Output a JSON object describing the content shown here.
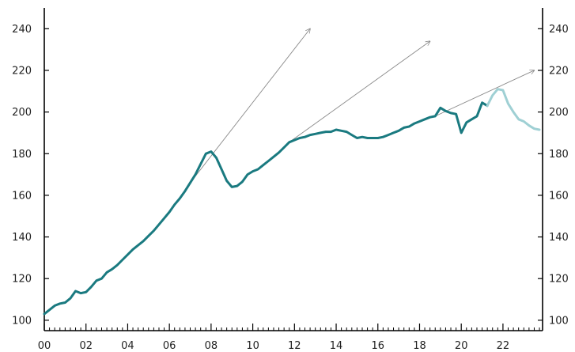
{
  "chart_data": {
    "type": "line",
    "title": "",
    "xlabel": "",
    "ylabel": "",
    "xlim": [
      2000,
      2023.9
    ],
    "ylim": [
      95,
      250
    ],
    "y_ticks": [
      100,
      120,
      140,
      160,
      180,
      200,
      220,
      240
    ],
    "x_ticks": [
      {
        "value": 2000,
        "label": "00"
      },
      {
        "value": 2002,
        "label": "02"
      },
      {
        "value": 2004,
        "label": "04"
      },
      {
        "value": 2006,
        "label": "06"
      },
      {
        "value": 2008,
        "label": "08"
      },
      {
        "value": 2010,
        "label": "10"
      },
      {
        "value": 2012,
        "label": "12"
      },
      {
        "value": 2014,
        "label": "14"
      },
      {
        "value": 2016,
        "label": "16"
      },
      {
        "value": 2018,
        "label": "18"
      },
      {
        "value": 2020,
        "label": "20"
      },
      {
        "value": 2022,
        "label": "22"
      }
    ],
    "dual_y_axis": true,
    "grid": false,
    "series": [
      {
        "color": "#1a7a80",
        "style": "solid",
        "points": [
          [
            2000.0,
            103
          ],
          [
            2000.25,
            105
          ],
          [
            2000.5,
            107
          ],
          [
            2000.75,
            108
          ],
          [
            2001.0,
            108.5
          ],
          [
            2001.25,
            110.5
          ],
          [
            2001.5,
            114
          ],
          [
            2001.75,
            113
          ],
          [
            2002.0,
            113.5
          ],
          [
            2002.25,
            116
          ],
          [
            2002.5,
            119
          ],
          [
            2002.75,
            120
          ],
          [
            2003.0,
            123
          ],
          [
            2003.25,
            124.5
          ],
          [
            2003.5,
            126.5
          ],
          [
            2003.75,
            129
          ],
          [
            2004.0,
            131.5
          ],
          [
            2004.25,
            134
          ],
          [
            2004.5,
            136
          ],
          [
            2004.75,
            138
          ],
          [
            2005.0,
            140.5
          ],
          [
            2005.25,
            143
          ],
          [
            2005.5,
            146
          ],
          [
            2005.75,
            149
          ],
          [
            2006.0,
            152
          ],
          [
            2006.25,
            155.5
          ],
          [
            2006.5,
            158.5
          ],
          [
            2006.75,
            162
          ],
          [
            2007.0,
            166
          ],
          [
            2007.25,
            170
          ],
          [
            2007.5,
            175
          ],
          [
            2007.75,
            180
          ],
          [
            2008.0,
            181
          ],
          [
            2008.25,
            178
          ],
          [
            2008.5,
            172.5
          ],
          [
            2008.75,
            167
          ],
          [
            2009.0,
            164
          ],
          [
            2009.25,
            164.5
          ],
          [
            2009.5,
            166.5
          ],
          [
            2009.75,
            170
          ],
          [
            2010.0,
            171.5
          ],
          [
            2010.25,
            172.5
          ],
          [
            2010.5,
            174.5
          ],
          [
            2010.75,
            176.5
          ],
          [
            2011.0,
            178.5
          ],
          [
            2011.25,
            180.5
          ],
          [
            2011.5,
            183
          ],
          [
            2011.75,
            185.5
          ],
          [
            2012.0,
            186.5
          ],
          [
            2012.25,
            187.5
          ],
          [
            2012.5,
            188
          ],
          [
            2012.75,
            189
          ],
          [
            2013.0,
            189.5
          ],
          [
            2013.25,
            190
          ],
          [
            2013.5,
            190.5
          ],
          [
            2013.75,
            190.5
          ],
          [
            2014.0,
            191.5
          ],
          [
            2014.25,
            191
          ],
          [
            2014.5,
            190.5
          ],
          [
            2014.75,
            189
          ],
          [
            2015.0,
            187.5
          ],
          [
            2015.25,
            188
          ],
          [
            2015.5,
            187.5
          ],
          [
            2015.75,
            187.5
          ],
          [
            2016.0,
            187.5
          ],
          [
            2016.25,
            188
          ],
          [
            2016.5,
            189
          ],
          [
            2016.75,
            190
          ],
          [
            2017.0,
            191
          ],
          [
            2017.25,
            192.5
          ],
          [
            2017.5,
            193
          ],
          [
            2017.75,
            194.5
          ],
          [
            2018.0,
            195.5
          ],
          [
            2018.25,
            196.5
          ],
          [
            2018.5,
            197.5
          ],
          [
            2018.75,
            198
          ],
          [
            2019.0,
            202
          ],
          [
            2019.25,
            200.5
          ],
          [
            2019.5,
            199.5
          ],
          [
            2019.75,
            199
          ],
          [
            2020.0,
            190
          ],
          [
            2020.25,
            195
          ],
          [
            2020.5,
            196.5
          ],
          [
            2020.75,
            198
          ],
          [
            2021.0,
            204.5
          ],
          [
            2021.25,
            203
          ]
        ]
      },
      {
        "color": "#9fd0d4",
        "style": "solid",
        "points": [
          [
            2021.25,
            203
          ],
          [
            2021.5,
            208
          ],
          [
            2021.75,
            211
          ],
          [
            2022.0,
            210.5
          ],
          [
            2022.25,
            204
          ],
          [
            2022.5,
            200
          ],
          [
            2022.75,
            196.5
          ],
          [
            2023.0,
            195.5
          ],
          [
            2023.25,
            193.5
          ],
          [
            2023.5,
            192
          ],
          [
            2023.75,
            191.5
          ]
        ]
      }
    ],
    "annotations": [
      {
        "type": "arrow",
        "from": [
          2007.0,
          166
        ],
        "to": [
          2012.75,
          240
        ],
        "color": "#8a8a8a"
      },
      {
        "type": "arrow",
        "from": [
          2011.75,
          185.5
        ],
        "to": [
          2018.5,
          234
        ],
        "color": "#8a8a8a"
      },
      {
        "type": "arrow",
        "from": [
          2018.75,
          198
        ],
        "to": [
          2023.5,
          220
        ],
        "color": "#8a8a8a"
      }
    ]
  }
}
